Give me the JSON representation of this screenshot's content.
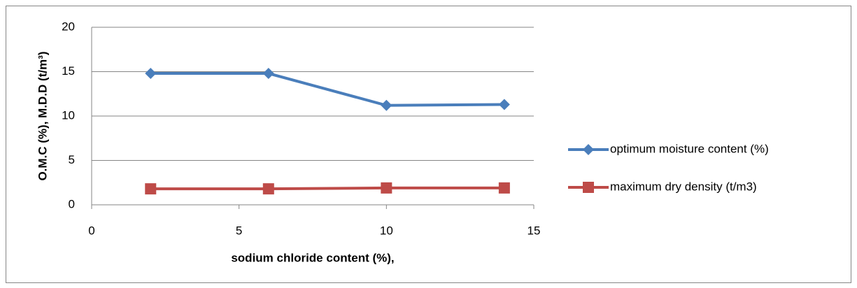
{
  "chart_data": {
    "type": "line",
    "x_label": "sodium chloride content (%),",
    "y_label": "O.M.C (%), M.D.D (t/m³)",
    "x": [
      2,
      6,
      10,
      14
    ],
    "series": [
      {
        "name": "optimum moisture content (%)",
        "color": "#4a7ebb",
        "marker": "diamond",
        "values": [
          14.8,
          14.8,
          11.2,
          11.3
        ]
      },
      {
        "name": "maximum dry density (t/m3)",
        "color": "#be4b48",
        "marker": "square",
        "values": [
          1.8,
          1.8,
          1.9,
          1.9
        ]
      }
    ],
    "xlim": [
      0,
      15
    ],
    "xticks": [
      0,
      5,
      10,
      15
    ],
    "ylim": [
      0,
      20
    ],
    "yticks": [
      0,
      5,
      10,
      15,
      20
    ],
    "grid": true,
    "legend": "right"
  }
}
